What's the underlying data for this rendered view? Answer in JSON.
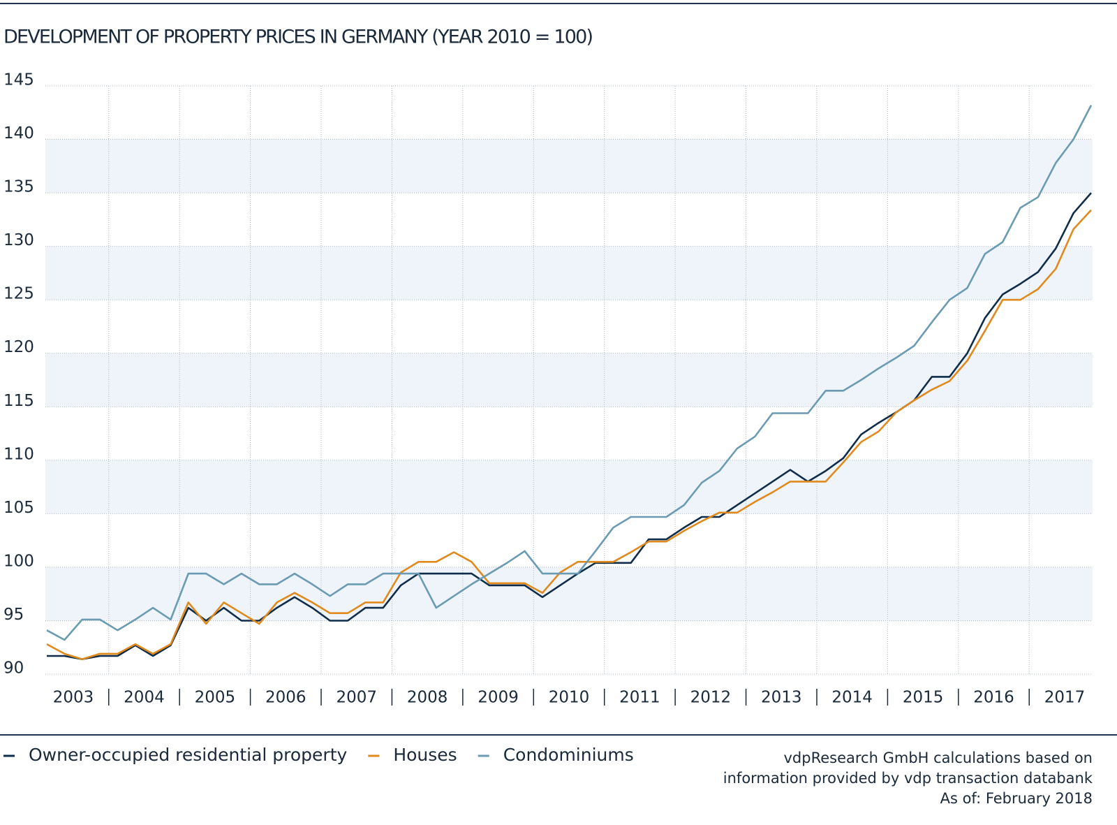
{
  "chart_data": {
    "type": "line",
    "title": "DEVELOPMENT OF PROPERTY PRICES IN GERMANY (YEAR 2010 = 100)",
    "categories": [
      "2003",
      null,
      null,
      null,
      "2004",
      null,
      null,
      null,
      "2005",
      null,
      null,
      null,
      "2006",
      null,
      null,
      null,
      "2007",
      null,
      null,
      null,
      "2008",
      null,
      null,
      null,
      "2009",
      null,
      null,
      null,
      "2010",
      null,
      null,
      null,
      "2011",
      null,
      null,
      null,
      "2012",
      null,
      null,
      null,
      "2013",
      null,
      null,
      null,
      "2014",
      null,
      null,
      null,
      "2015",
      null,
      null,
      null,
      "2016",
      null,
      null,
      null,
      "2017",
      null,
      null,
      null
    ],
    "series": [
      {
        "name": "Owner-occupied residential property",
        "color": "#0f2d4a",
        "values": [
          91.7,
          91.7,
          91.4,
          91.7,
          91.7,
          92.7,
          91.7,
          92.7,
          96.2,
          95.0,
          96.2,
          95.0,
          95.0,
          96.2,
          97.2,
          96.2,
          95.0,
          95.0,
          96.2,
          96.2,
          98.3,
          99.4,
          99.4,
          99.4,
          99.4,
          98.3,
          98.3,
          98.3,
          97.2,
          98.3,
          99.4,
          100.4,
          100.4,
          100.4,
          102.6,
          102.6,
          103.7,
          104.7,
          104.7,
          105.8,
          106.9,
          108.0,
          109.1,
          108.0,
          109.0,
          110.2,
          112.4,
          113.5,
          114.5,
          115.6,
          117.8,
          117.8,
          120.0,
          123.3,
          125.5,
          126.5,
          127.6,
          129.8,
          133.1,
          135.0
        ]
      },
      {
        "name": "Houses",
        "color": "#e08a1e",
        "values": [
          92.8,
          91.9,
          91.4,
          91.9,
          91.9,
          92.8,
          91.9,
          92.8,
          96.7,
          94.7,
          96.7,
          95.7,
          94.7,
          96.7,
          97.6,
          96.7,
          95.7,
          95.7,
          96.7,
          96.7,
          99.5,
          100.5,
          100.5,
          101.4,
          100.5,
          98.5,
          98.5,
          98.5,
          97.6,
          99.5,
          100.5,
          100.5,
          100.5,
          101.4,
          102.4,
          102.4,
          103.4,
          104.3,
          105.1,
          105.1,
          106.1,
          107.0,
          108.0,
          108.0,
          108.0,
          109.8,
          111.7,
          112.7,
          114.5,
          115.6,
          116.6,
          117.4,
          119.3,
          122.1,
          125.0,
          125.0,
          126.0,
          127.9,
          131.6,
          133.4
        ]
      },
      {
        "name": "Condominiums",
        "color": "#6a9bb3",
        "values": [
          94.1,
          93.2,
          95.1,
          95.1,
          94.1,
          95.1,
          96.2,
          95.1,
          99.4,
          99.4,
          98.4,
          99.4,
          98.4,
          98.4,
          99.4,
          98.4,
          97.3,
          98.4,
          98.4,
          99.4,
          99.4,
          99.4,
          96.2,
          97.3,
          98.4,
          99.4,
          100.4,
          101.5,
          99.4,
          99.4,
          99.4,
          101.5,
          103.7,
          104.7,
          104.7,
          104.7,
          105.8,
          107.9,
          109.0,
          111.1,
          112.2,
          114.4,
          114.4,
          114.4,
          116.5,
          116.5,
          117.5,
          118.6,
          119.6,
          120.7,
          122.9,
          125.0,
          126.1,
          129.3,
          130.4,
          133.6,
          134.6,
          137.8,
          140.0,
          143.2
        ]
      }
    ],
    "ylim": [
      90,
      145
    ],
    "yticks": [
      90,
      95,
      100,
      105,
      110,
      115,
      120,
      125,
      130,
      135,
      140,
      145
    ],
    "grid": true,
    "legend": "bottom-left",
    "source": [
      "vdpResearch GmbH calculations based on",
      "information provided by vdp transaction databank",
      "As of: February 2018"
    ]
  }
}
